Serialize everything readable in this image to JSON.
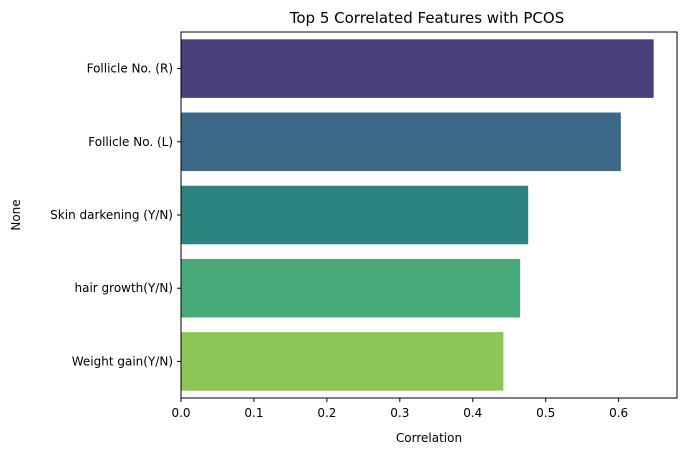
{
  "chart_data": {
    "type": "bar",
    "orientation": "horizontal",
    "title": "Top 5 Correlated Features with PCOS",
    "xlabel": "Correlation",
    "ylabel": "None",
    "categories": [
      "Follicle No. (R)",
      "Follicle No. (L)",
      "Skin darkening (Y/N)",
      "hair growth(Y/N)",
      "Weight gain(Y/N)"
    ],
    "values": [
      0.648,
      0.603,
      0.476,
      0.465,
      0.442
    ],
    "colors": [
      "#48417c",
      "#3b6887",
      "#2c8480",
      "#46ab79",
      "#8dc556"
    ],
    "xlim": [
      0,
      0.68
    ],
    "xticks": [
      0.0,
      0.1,
      0.2,
      0.3,
      0.4,
      0.5,
      0.6
    ],
    "xtick_labels": [
      "0.0",
      "0.1",
      "0.2",
      "0.3",
      "0.4",
      "0.5",
      "0.6"
    ],
    "grid": false,
    "legend": "none"
  }
}
